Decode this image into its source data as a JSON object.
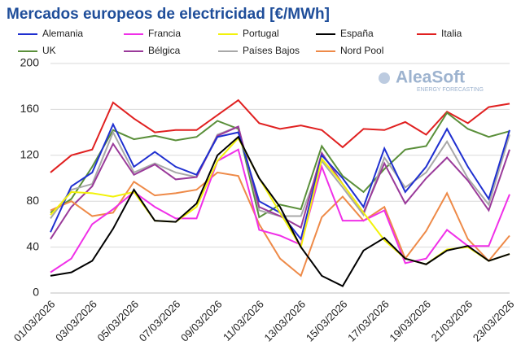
{
  "chart_data": {
    "type": "line",
    "title": "Mercados europeos de electricidad [€/MWh]",
    "logo": {
      "name": "AleaSoft",
      "tagline": "ENERGY FORECASTING"
    },
    "categories": [
      "01/03/2026",
      null,
      "03/03/2026",
      null,
      "05/03/2026",
      null,
      "07/03/2026",
      null,
      "09/03/2026",
      null,
      "11/03/2026",
      null,
      "13/03/2026",
      null,
      "15/03/2026",
      null,
      "17/03/2026",
      null,
      "19/03/2026",
      null,
      "21/03/2026",
      null,
      "23/03/2026"
    ],
    "ylim": [
      0,
      200
    ],
    "yticks": [
      0,
      40,
      80,
      120,
      160,
      200
    ],
    "grid": true,
    "series": [
      {
        "name": "Alemania",
        "color": "#1f2fd0",
        "values": [
          53,
          93,
          105,
          147,
          110,
          123,
          110,
          103,
          136,
          140,
          80,
          70,
          47,
          120,
          100,
          75,
          126,
          88,
          110,
          143,
          110,
          82,
          142
        ]
      },
      {
        "name": "Francia",
        "color": "#f030e8",
        "values": [
          18,
          30,
          60,
          73,
          88,
          75,
          65,
          65,
          115,
          125,
          55,
          50,
          42,
          110,
          63,
          63,
          72,
          26,
          30,
          55,
          41,
          41,
          86
        ]
      },
      {
        "name": "Portugal",
        "color": "#f2f20a",
        "values": [
          68,
          88,
          87,
          84,
          88,
          63,
          62,
          75,
          115,
          135,
          100,
          70,
          40,
          117,
          95,
          70,
          46,
          30,
          25,
          38,
          40,
          28,
          34
        ]
      },
      {
        "name": "España",
        "color": "#000000",
        "values": [
          15,
          18,
          28,
          56,
          90,
          63,
          62,
          78,
          120,
          136,
          100,
          75,
          40,
          15,
          6,
          37,
          48,
          30,
          25,
          37,
          41,
          28,
          34
        ]
      },
      {
        "name": "Italia",
        "color": "#e02020",
        "values": [
          105,
          120,
          125,
          166,
          152,
          140,
          142,
          142,
          155,
          168,
          148,
          143,
          146,
          142,
          127,
          143,
          142,
          149,
          138,
          158,
          148,
          162,
          165
        ]
      },
      {
        "name": "UK",
        "color": "#5a8f3a",
        "values": [
          70,
          82,
          110,
          142,
          134,
          137,
          133,
          136,
          150,
          143,
          66,
          77,
          73,
          128,
          102,
          88,
          108,
          125,
          128,
          157,
          143,
          136,
          141
        ]
      },
      {
        "name": "Bélgica",
        "color": "#9a3a9a",
        "values": [
          47,
          75,
          93,
          130,
          103,
          112,
          99,
          101,
          137,
          145,
          75,
          67,
          57,
          122,
          95,
          70,
          113,
          78,
          100,
          118,
          98,
          72,
          125
        ]
      },
      {
        "name": "Países Bajos",
        "color": "#a8a8a8",
        "values": [
          65,
          90,
          95,
          140,
          105,
          113,
          105,
          101,
          138,
          145,
          72,
          67,
          67,
          115,
          92,
          68,
          118,
          92,
          105,
          132,
          100,
          77,
          138
        ]
      },
      {
        "name": "Nord Pool",
        "color": "#ee8a48",
        "values": [
          72,
          80,
          67,
          70,
          97,
          85,
          87,
          90,
          105,
          102,
          60,
          30,
          15,
          66,
          84,
          63,
          75,
          30,
          54,
          87,
          47,
          28,
          50
        ]
      }
    ]
  }
}
